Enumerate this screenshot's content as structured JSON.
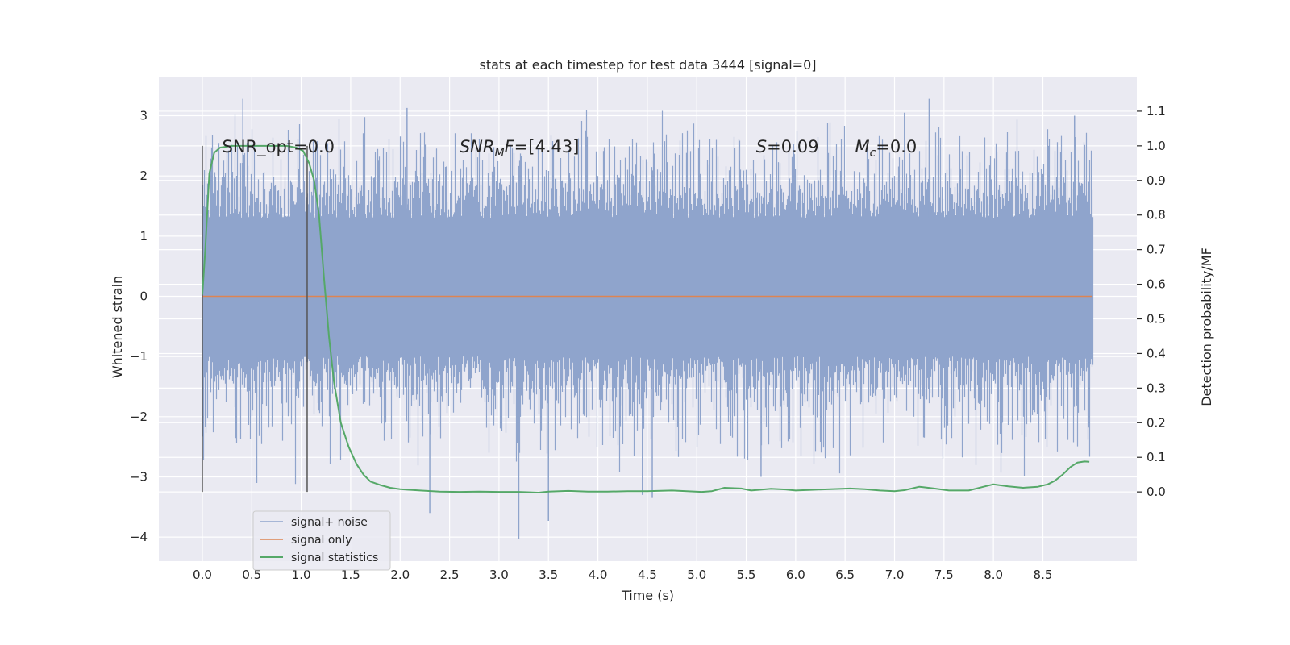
{
  "colors": {
    "plot_bg": "#eaeaf2",
    "grid": "#ffffff",
    "noise": "#8fa4cc",
    "signal_only": "#dd8452",
    "statistics": "#55a868",
    "vline": "#555555",
    "text": "#262626"
  },
  "chart_data": {
    "type": "line",
    "title": "stats at each timestep for test data 3444 [signal=0]",
    "xlabel": "Time (s)",
    "ylabel_left": "Whitened strain",
    "ylabel_right": "Detection probability/MF",
    "xlim": [
      -0.44,
      9.45
    ],
    "ylim_left": [
      -4.4,
      3.65
    ],
    "ylim_right": [
      -0.2,
      1.2
    ],
    "x_ticks": [
      0.0,
      0.5,
      1.0,
      1.5,
      2.0,
      2.5,
      3.0,
      3.5,
      4.0,
      4.5,
      5.0,
      5.5,
      6.0,
      6.5,
      7.0,
      7.5,
      8.0,
      8.5
    ],
    "x_tick_labels": [
      "0.0",
      "0.5",
      "1.0",
      "1.5",
      "2.0",
      "2.5",
      "3.0",
      "3.5",
      "4.0",
      "4.5",
      "5.0",
      "5.5",
      "6.0",
      "6.5",
      "7.0",
      "7.5",
      "8.0",
      "8.5"
    ],
    "y_ticks_left": [
      -4,
      -3,
      -2,
      -1,
      0,
      1,
      2,
      3
    ],
    "y_tick_labels_left": [
      "−4",
      "−3",
      "−2",
      "−1",
      "0",
      "1",
      "2",
      "3"
    ],
    "y_ticks_right": [
      0.0,
      0.1,
      0.2,
      0.3,
      0.4,
      0.5,
      0.6,
      0.7,
      0.8,
      0.9,
      1.0,
      1.1
    ],
    "y_tick_labels_right": [
      "0.0",
      "0.1",
      "0.2",
      "0.3",
      "0.4",
      "0.5",
      "0.6",
      "0.7",
      "0.8",
      "0.9",
      "1.0",
      "1.1"
    ],
    "grid": true,
    "legend_position": "lower-left",
    "series": [
      {
        "name": "signal+ noise",
        "axis": "left",
        "kind": "noise_band",
        "x_range": [
          0.0,
          9.0
        ],
        "dense_band": [
          -1.0,
          1.3
        ],
        "typical_extremes": [
          -2.3,
          2.4
        ],
        "max_peak": 3.28,
        "min_trough": -4.03,
        "notable_peaks": [
          [
            0.41,
            3.28
          ],
          [
            2.07,
            3.13
          ],
          [
            3.2,
            -4.03
          ],
          [
            3.5,
            -3.73
          ],
          [
            2.3,
            -3.6
          ],
          [
            7.35,
            3.28
          ],
          [
            4.55,
            -3.35
          ],
          [
            4.45,
            -3.3
          ],
          [
            0.55,
            -3.1
          ],
          [
            5.65,
            -3.0
          ],
          [
            7.1,
            3.05
          ],
          [
            8.82,
            3.0
          ]
        ]
      },
      {
        "name": "signal only",
        "axis": "left",
        "x": [
          0.0,
          9.0
        ],
        "y": [
          0.0,
          0.0
        ]
      },
      {
        "name": "signal statistics",
        "axis": "right",
        "x": [
          0.0,
          0.03,
          0.07,
          0.12,
          0.18,
          0.3,
          0.5,
          0.7,
          0.85,
          0.95,
          1.02,
          1.08,
          1.13,
          1.18,
          1.23,
          1.28,
          1.33,
          1.4,
          1.48,
          1.56,
          1.63,
          1.7,
          1.8,
          1.9,
          2.0,
          2.2,
          2.4,
          2.6,
          2.8,
          3.0,
          3.2,
          3.4,
          3.5,
          3.7,
          3.9,
          4.1,
          4.3,
          4.5,
          4.6,
          4.75,
          4.9,
          5.05,
          5.15,
          5.28,
          5.45,
          5.55,
          5.75,
          5.9,
          6.0,
          6.15,
          6.35,
          6.55,
          6.7,
          6.85,
          7.0,
          7.1,
          7.25,
          7.4,
          7.55,
          7.75,
          7.9,
          8.0,
          8.15,
          8.3,
          8.45,
          8.55,
          8.62,
          8.7,
          8.78,
          8.85,
          8.92,
          8.97
        ],
        "y": [
          0.57,
          0.7,
          0.92,
          0.98,
          0.995,
          1.0,
          1.0,
          1.0,
          1.0,
          0.995,
          0.985,
          0.95,
          0.9,
          0.8,
          0.62,
          0.45,
          0.32,
          0.2,
          0.13,
          0.08,
          0.05,
          0.03,
          0.02,
          0.012,
          0.008,
          0.004,
          0.001,
          0.0,
          0.001,
          0.0,
          0.0,
          -0.002,
          0.001,
          0.003,
          0.001,
          0.001,
          0.002,
          0.002,
          0.003,
          0.004,
          0.002,
          0.0,
          0.002,
          0.012,
          0.01,
          0.004,
          0.009,
          0.007,
          0.004,
          0.006,
          0.008,
          0.01,
          0.008,
          0.004,
          0.002,
          0.005,
          0.015,
          0.01,
          0.004,
          0.004,
          0.015,
          0.022,
          0.016,
          0.012,
          0.015,
          0.022,
          0.032,
          0.05,
          0.072,
          0.085,
          0.088,
          0.087
        ]
      }
    ],
    "vertical_lines": [
      {
        "x": 0.0,
        "y_range_right": [
          0.0,
          1.0
        ]
      },
      {
        "x": 1.06,
        "y_range_right": [
          0.0,
          1.0
        ]
      }
    ],
    "annotations": [
      {
        "id": "snr_opt",
        "text": "SNR_opt=0.0",
        "x": 0.2,
        "y_right": 1.0
      },
      {
        "id": "snr_mf",
        "main": "SNR",
        "sub": "M",
        "tail": "F=[4.43]",
        "x": 2.6,
        "y_right": 1.0
      },
      {
        "id": "s",
        "main": "S",
        "tail": "=0.09",
        "x": 5.6,
        "y_right": 1.0
      },
      {
        "id": "mc",
        "main": "M",
        "sub": "c",
        "tail": "=0.0",
        "x": 6.6,
        "y_right": 1.0
      }
    ]
  }
}
